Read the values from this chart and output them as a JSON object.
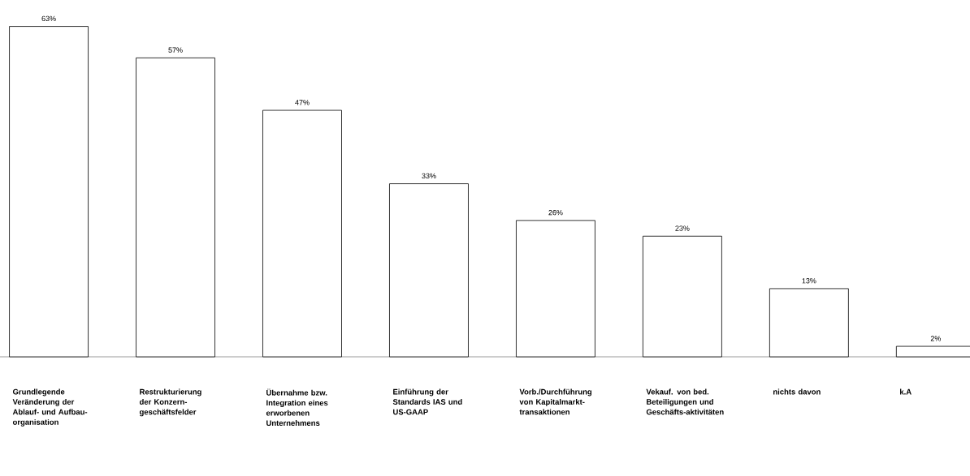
{
  "chart_data": {
    "type": "bar",
    "categories": [
      "Grundlegende Veränderung der Ablauf- und Aufbau-organisation",
      "Restrukturierung der Konzern-geschäftsfelder",
      "Übernahme bzw. Integration eines erworbenen Unternehmens",
      "Einführung der Standards IAS und US-GAAP",
      "Vorb./Durchführung von Kapitalmarkt-transaktionen",
      "Vekauf. von bed. Beteiligungen und Geschäfts-aktivitäten",
      "nichts davon",
      "k.A"
    ],
    "values": [
      63,
      57,
      47,
      33,
      26,
      23,
      13,
      2
    ],
    "value_labels": [
      "63%",
      "57%",
      "47%",
      "33%",
      "26%",
      "23%",
      "13%",
      "2%"
    ],
    "color": "#ffffff"
  }
}
